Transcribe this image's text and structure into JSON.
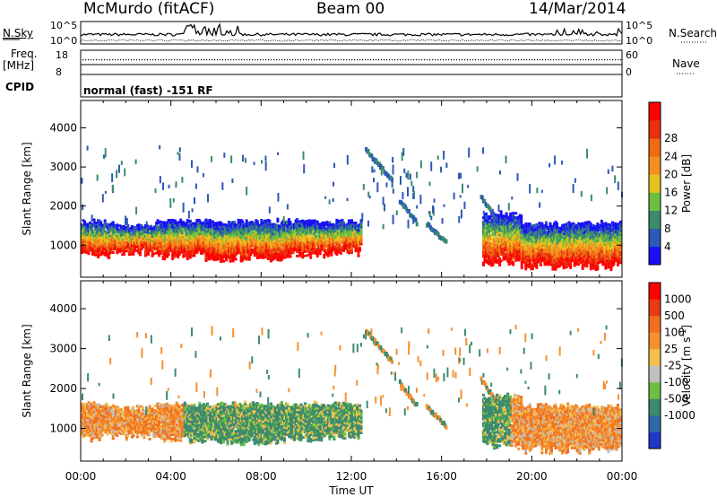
{
  "header": {
    "station": "McMurdo (fitACF)",
    "beam": "Beam 00",
    "date": "14/Mar/2014"
  },
  "noise_panel": {
    "left_label": "N.Sky",
    "right_label": "N.Search",
    "left_ticks": [
      "10^5",
      "10^0"
    ],
    "right_ticks": [
      "10^5",
      "10^0"
    ]
  },
  "freq_panel": {
    "label_line1": "Freq.",
    "label_line2": "[MHz]",
    "left_ticks": [
      "18",
      "8"
    ],
    "right_label": "Nave",
    "right_ticks": [
      "60",
      "0"
    ]
  },
  "cpid": {
    "label": "CPID",
    "mode": "normal (fast) -151 RF"
  },
  "chart_data": [
    {
      "type": "heatmap",
      "title": "",
      "ylabel": "Slant Range [km]",
      "y_ticks": [
        "1000",
        "2000",
        "3000",
        "4000"
      ],
      "ylim": [
        180,
        4700
      ],
      "colorbar": {
        "label": "Power [dB]",
        "ticks": [
          "4",
          "8",
          "12",
          "16",
          "20",
          "24",
          "28"
        ],
        "range": [
          0,
          30
        ],
        "colors": [
          "#1a10f5",
          "#2c58b8",
          "#3b8c6a",
          "#6dbf40",
          "#e6c21e",
          "#f59020",
          "#f06a10",
          "#e83010",
          "#ff0000"
        ]
      }
    },
    {
      "type": "heatmap",
      "title": "",
      "ylabel": "Slant Range [km]",
      "y_ticks": [
        "1000",
        "2000",
        "3000",
        "4000"
      ],
      "ylim": [
        180,
        4700
      ],
      "colorbar": {
        "label": "Velocity [m s^-1]",
        "ticks": [
          "1000",
          "500",
          "100",
          "25",
          "-25",
          "-100",
          "-500",
          "-1000"
        ],
        "colors": [
          "#2038c8",
          "#2f6aa8",
          "#3c8a70",
          "#6cc040",
          "#c0c0c0",
          "#f5c050",
          "#f59030",
          "#f07020",
          "#e83a14",
          "#ff0000"
        ]
      }
    }
  ],
  "x_axis": {
    "label": "Time UT",
    "ticks": [
      "00:00",
      "04:00",
      "08:00",
      "12:00",
      "16:00",
      "20:00",
      "00:00"
    ]
  }
}
